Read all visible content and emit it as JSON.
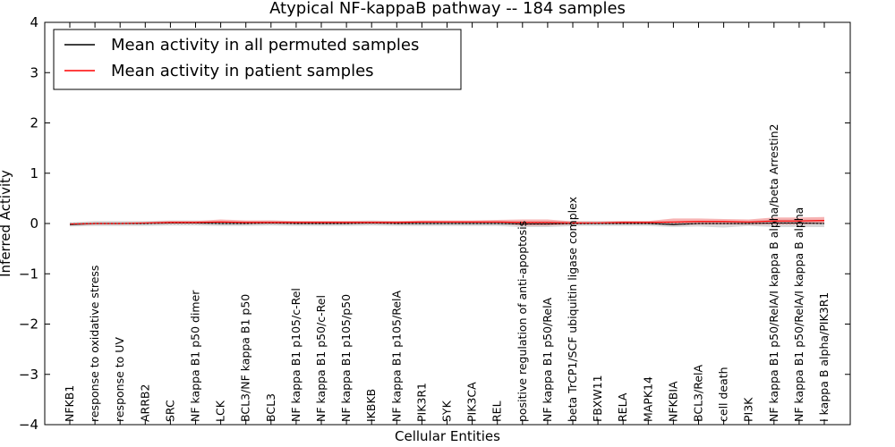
{
  "chart_data": {
    "type": "line",
    "title": "Atypical NF-kappaB pathway -- 184 samples",
    "xlabel": "Cellular Entities",
    "ylabel": "Inferred Activity",
    "ylim": [
      -4,
      4
    ],
    "yticks": [
      4,
      3,
      2,
      1,
      0,
      -1,
      -2,
      -3,
      -4
    ],
    "ytick_labels": [
      "4",
      "3",
      "2",
      "1",
      "0",
      "−1",
      "−2",
      "−3",
      "−4"
    ],
    "grid": false,
    "legend_position": "top-left",
    "categories": [
      "NFKB1",
      "response to oxidative stress",
      "response to UV",
      "ARRB2",
      "SRC",
      "NF kappa B1 p50 dimer",
      "LCK",
      "BCL3/NF kappa B1 p50",
      "BCL3",
      "NF kappa B1 p105/c-Rel",
      "NF kappa B1 p50/c-Rel",
      "NF kappa B1 p105/p50",
      "IKBKB",
      "NF kappa B1 p105/RelA",
      "PIK3R1",
      "SYK",
      "PIK3CA",
      "REL",
      "positive regulation of anti-apoptosis",
      "NF kappa B1 p50/RelA",
      "beta TrCP1/SCF ubiquitin ligase complex",
      "FBXW11",
      "RELA",
      "MAPK14",
      "NFKBIA",
      "BCL3/RelA",
      "cell death",
      "PI3K",
      "NF kappa B1 p50/RelA/I kappa B alpha/beta Arrestin2",
      "NF kappa B1 p50/RelA/I kappa B alpha",
      "I kappa B alpha/PIK3R1"
    ],
    "series": [
      {
        "name": "Mean activity in all permuted samples",
        "color": "#000000",
        "values": [
          -0.02,
          0.0,
          0.0,
          0.0,
          0.01,
          0.01,
          0.0,
          0.0,
          0.01,
          0.0,
          0.0,
          0.0,
          0.01,
          0.0,
          0.0,
          0.0,
          0.0,
          0.0,
          -0.01,
          -0.01,
          0.0,
          0.0,
          0.0,
          0.0,
          -0.02,
          0.0,
          0.0,
          0.0,
          0.01,
          0.01,
          0.0
        ],
        "band_low": [
          -0.06,
          -0.05,
          -0.05,
          -0.05,
          -0.04,
          -0.04,
          -0.05,
          -0.05,
          -0.04,
          -0.05,
          -0.05,
          -0.05,
          -0.04,
          -0.05,
          -0.05,
          -0.05,
          -0.05,
          -0.05,
          -0.07,
          -0.07,
          -0.05,
          -0.05,
          -0.05,
          -0.05,
          -0.07,
          -0.06,
          -0.08,
          -0.05,
          -0.07,
          -0.07,
          -0.07
        ],
        "band_high": [
          0.02,
          0.05,
          0.05,
          0.05,
          0.06,
          0.06,
          0.05,
          0.05,
          0.06,
          0.05,
          0.05,
          0.05,
          0.06,
          0.05,
          0.05,
          0.05,
          0.05,
          0.05,
          0.05,
          0.05,
          0.05,
          0.05,
          0.05,
          0.05,
          0.04,
          0.05,
          0.05,
          0.05,
          0.08,
          0.08,
          0.07
        ]
      },
      {
        "name": "Mean activity in patient samples",
        "color": "#ff0000",
        "band_color": "#f08080",
        "values": [
          -0.01,
          0.0,
          0.0,
          0.01,
          0.02,
          0.02,
          0.03,
          0.02,
          0.02,
          0.02,
          0.02,
          0.02,
          0.02,
          0.02,
          0.03,
          0.03,
          0.03,
          0.03,
          0.02,
          0.02,
          0.01,
          0.01,
          0.02,
          0.02,
          0.03,
          0.04,
          0.04,
          0.03,
          0.05,
          0.05,
          0.06
        ],
        "band_low": [
          -0.03,
          -0.02,
          -0.02,
          -0.01,
          0.0,
          0.0,
          -0.01,
          0.0,
          0.0,
          0.0,
          0.0,
          0.0,
          0.0,
          0.0,
          0.0,
          0.0,
          0.0,
          0.0,
          -0.04,
          -0.04,
          -0.02,
          -0.01,
          -0.01,
          -0.01,
          -0.03,
          -0.02,
          -0.02,
          -0.02,
          -0.02,
          -0.02,
          -0.01
        ],
        "band_high": [
          0.01,
          0.02,
          0.02,
          0.03,
          0.05,
          0.05,
          0.08,
          0.06,
          0.06,
          0.05,
          0.05,
          0.05,
          0.05,
          0.05,
          0.06,
          0.06,
          0.06,
          0.07,
          0.08,
          0.08,
          0.04,
          0.04,
          0.05,
          0.05,
          0.1,
          0.1,
          0.09,
          0.08,
          0.12,
          0.12,
          0.13
        ]
      }
    ]
  }
}
